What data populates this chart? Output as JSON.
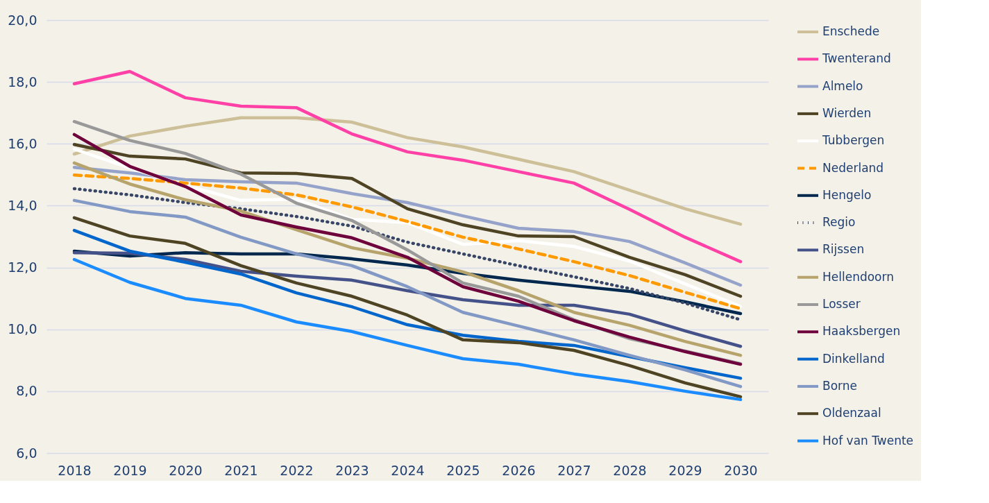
{
  "chart_data": {
    "type": "line",
    "categories": [
      "2018",
      "2019",
      "2020",
      "2021",
      "2022",
      "2023",
      "2024",
      "2025",
      "2026",
      "2027",
      "2028",
      "2029",
      "2030"
    ],
    "ylim": [
      6,
      20
    ],
    "yticks": [
      {
        "value": 6,
        "label": "6,0"
      },
      {
        "value": 8,
        "label": "8,0"
      },
      {
        "value": 10,
        "label": "10,0"
      },
      {
        "value": 12,
        "label": "12,0"
      },
      {
        "value": 14,
        "label": "14,0"
      },
      {
        "value": 16,
        "label": "16,0"
      },
      {
        "value": 18,
        "label": "18,0"
      },
      {
        "value": 20,
        "label": "20,0"
      }
    ],
    "grid": "y",
    "legend": "right",
    "marker": "none",
    "series": [
      {
        "name": "Enschede",
        "color": "#cdbf97",
        "line_style": "solid",
        "values": [
          15.67,
          16.25,
          16.57,
          16.84,
          16.84,
          16.7,
          16.2,
          15.9,
          15.5,
          15.1,
          14.5,
          13.9,
          13.4
        ]
      },
      {
        "name": "Twenterand",
        "color": "#ff40a6",
        "line_style": "solid",
        "values": [
          17.94,
          18.34,
          17.49,
          17.22,
          17.17,
          16.32,
          15.74,
          15.47,
          15.1,
          14.73,
          13.88,
          12.98,
          12.19
        ]
      },
      {
        "name": "Almelo",
        "color": "#95a3cb",
        "line_style": "solid",
        "values": [
          15.24,
          15.06,
          14.84,
          14.77,
          14.73,
          14.39,
          14.1,
          13.67,
          13.27,
          13.16,
          12.84,
          12.15,
          11.43
        ]
      },
      {
        "name": "Wierden",
        "color": "#4e4424",
        "line_style": "solid",
        "values": [
          15.98,
          15.6,
          15.51,
          15.06,
          15.04,
          14.88,
          13.9,
          13.38,
          13.02,
          13.0,
          12.33,
          11.77,
          11.07
        ]
      },
      {
        "name": "Tubbergen",
        "color": "#ffffff",
        "line_style": "solid",
        "values": [
          15.83,
          15.22,
          14.66,
          14.17,
          14.21,
          13.56,
          13.45,
          12.75,
          12.87,
          12.68,
          12.21,
          11.47,
          10.74
        ]
      },
      {
        "name": "Nederland",
        "color": "#ff9900",
        "line_style": "dashed",
        "values": [
          14.99,
          14.88,
          14.73,
          14.57,
          14.35,
          13.96,
          13.49,
          12.98,
          12.6,
          12.19,
          11.74,
          11.2,
          10.67
        ]
      },
      {
        "name": "Hengelo",
        "color": "#00284f",
        "line_style": "solid",
        "values": [
          12.53,
          12.37,
          12.48,
          12.44,
          12.44,
          12.28,
          12.08,
          11.81,
          11.59,
          11.41,
          11.23,
          10.89,
          10.51
        ]
      },
      {
        "name": "Regio",
        "color": "#374566",
        "line_style": "dotted",
        "values": [
          14.55,
          14.35,
          14.1,
          13.9,
          13.65,
          13.34,
          12.82,
          12.44,
          12.06,
          11.7,
          11.32,
          10.85,
          10.31
        ]
      },
      {
        "name": "Rijssen",
        "color": "#45528a",
        "line_style": "solid",
        "values": [
          12.48,
          12.46,
          12.26,
          11.88,
          11.72,
          11.59,
          11.25,
          10.96,
          10.78,
          10.78,
          10.49,
          9.95,
          9.45
        ]
      },
      {
        "name": "Hellendoorn",
        "color": "#b6a46c",
        "line_style": "solid",
        "values": [
          15.38,
          14.7,
          14.19,
          13.83,
          13.22,
          12.64,
          12.3,
          11.86,
          11.25,
          10.55,
          10.13,
          9.61,
          9.16
        ]
      },
      {
        "name": "Losser",
        "color": "#999999",
        "line_style": "solid",
        "values": [
          16.72,
          16.11,
          15.69,
          15.02,
          14.08,
          13.52,
          12.57,
          11.5,
          11.07,
          10.31,
          9.7,
          9.3,
          8.89
        ]
      },
      {
        "name": "Haaksbergen",
        "color": "#6e003c",
        "line_style": "solid",
        "values": [
          16.3,
          15.27,
          14.62,
          13.7,
          13.31,
          12.96,
          12.33,
          11.38,
          10.91,
          10.28,
          9.75,
          9.28,
          8.87
        ]
      },
      {
        "name": "Dinkelland",
        "color": "#0066cc",
        "line_style": "solid",
        "values": [
          13.2,
          12.53,
          12.17,
          11.79,
          11.18,
          10.73,
          10.15,
          9.81,
          9.61,
          9.48,
          9.12,
          8.76,
          8.42
        ]
      },
      {
        "name": "Borne",
        "color": "#8299c5",
        "line_style": "solid",
        "values": [
          14.17,
          13.81,
          13.63,
          12.98,
          12.44,
          12.06,
          11.38,
          10.55,
          10.11,
          9.66,
          9.16,
          8.69,
          8.15
        ]
      },
      {
        "name": "Oldenzaal",
        "color": "#4e4424",
        "line_style": "solid",
        "values": [
          13.61,
          13.02,
          12.78,
          12.06,
          11.5,
          11.07,
          10.46,
          9.66,
          9.57,
          9.32,
          8.83,
          8.27,
          7.82
        ]
      },
      {
        "name": "Hof van Twente",
        "color": "#1a8cff",
        "line_style": "solid",
        "values": [
          12.26,
          11.52,
          11.0,
          10.78,
          10.24,
          9.93,
          9.48,
          9.05,
          8.87,
          8.56,
          8.31,
          8.0,
          7.73
        ]
      }
    ]
  }
}
